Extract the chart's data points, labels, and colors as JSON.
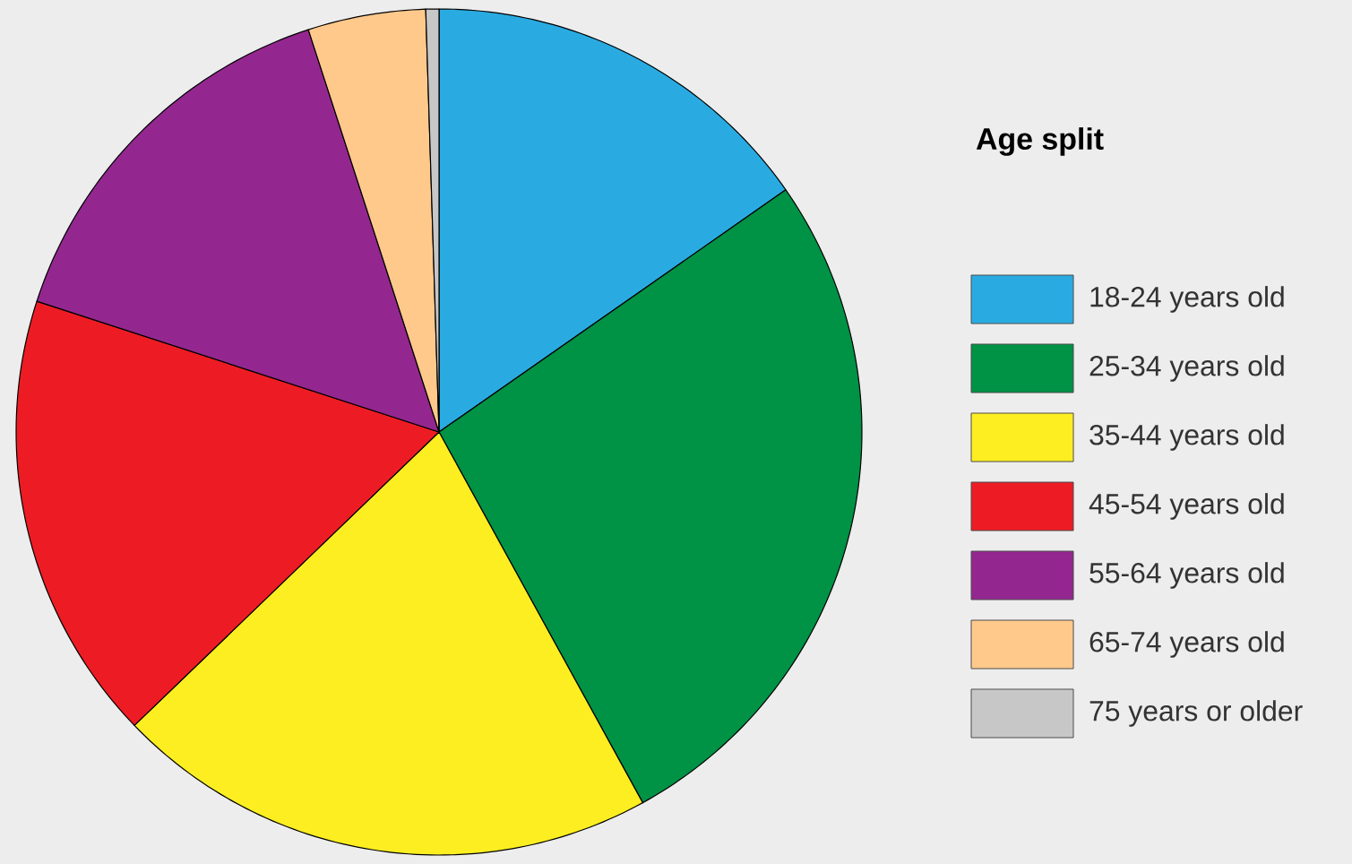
{
  "chart_data": {
    "type": "pie",
    "legend_title": "Age split",
    "legend": "right",
    "categories": [
      "18-24 years old",
      "25-34 years old",
      "35-44 years old",
      "45-54 years old",
      "55-64 years old",
      "65-74 years old",
      "75 years or older"
    ],
    "values": [
      15.3,
      26.7,
      20.8,
      17.2,
      15.0,
      4.5,
      0.5
    ],
    "colors": [
      "#29abe2",
      "#009245",
      "#fcee21",
      "#ed1c24",
      "#93278f",
      "#ffc98b",
      "#c7c7c7"
    ]
  }
}
